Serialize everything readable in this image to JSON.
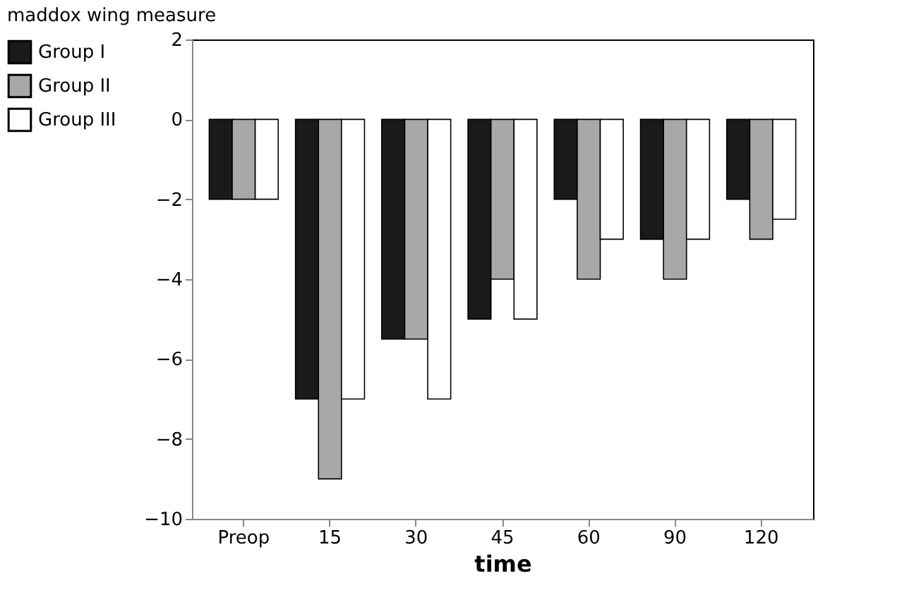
{
  "chart_data": {
    "type": "bar",
    "title": "maddox wing measure",
    "xlabel": "time",
    "categories": [
      "Preop",
      "15",
      "30",
      "45",
      "60",
      "90",
      "120"
    ],
    "series": [
      {
        "name": "Group I",
        "color": "#1a1a1a",
        "values": [
          -2,
          -7,
          -5.5,
          -5,
          -2,
          -3,
          -2
        ]
      },
      {
        "name": "Group II",
        "color": "#a8a8a8",
        "values": [
          -2,
          -9,
          -5.5,
          -4,
          -4,
          -4,
          -3
        ]
      },
      {
        "name": "Group III",
        "color": "#ffffff",
        "values": [
          -2,
          -7,
          -7,
          -5,
          -3,
          -3,
          -2.5
        ]
      }
    ],
    "ylim": [
      -10,
      2
    ],
    "yticks": [
      -10,
      -8,
      -6,
      -4,
      -2,
      0,
      2
    ],
    "grid": false,
    "legend": "left"
  }
}
